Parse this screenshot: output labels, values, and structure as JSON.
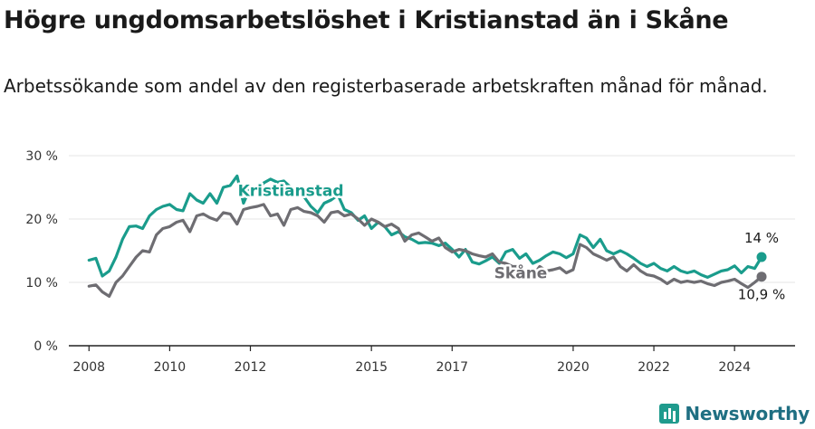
{
  "header": {
    "title": "Högre ungdomsarbetslöshet i Kristianstad än i Skåne",
    "subtitle": "Arbetssökande som andel av den registerbaserade arbetskraften månad för månad."
  },
  "brand": {
    "name": "Newsworthy",
    "icon": "newsworthy-logo-icon"
  },
  "chart_data": {
    "type": "line",
    "title": "Högre ungdomsarbetslöshet i Kristianstad än i Skåne",
    "subtitle": "Arbetssökande som andel av den registerbaserade arbetskraften månad för månad.",
    "xlabel": "",
    "ylabel": "",
    "xlim": [
      2007.5,
      2025.5
    ],
    "ylim": [
      0,
      30
    ],
    "y_ticks": [
      0,
      10,
      20,
      30
    ],
    "y_tick_labels": [
      "0 %",
      "10 %",
      "20 %",
      "30 %"
    ],
    "x_ticks": [
      2008,
      2010,
      2012,
      2015,
      2017,
      2020,
      2022,
      2024
    ],
    "x_tick_labels": [
      "2008",
      "2010",
      "2012",
      "2015",
      "2017",
      "2020",
      "2022",
      "2024"
    ],
    "grid": true,
    "series": [
      {
        "name": "Kristianstad",
        "color": "#1a9c8c",
        "end_label": "14 %",
        "x": [
          2008.0,
          2008.17,
          2008.33,
          2008.5,
          2008.67,
          2008.83,
          2009.0,
          2009.17,
          2009.33,
          2009.5,
          2009.67,
          2009.83,
          2010.0,
          2010.17,
          2010.33,
          2010.5,
          2010.67,
          2010.83,
          2011.0,
          2011.17,
          2011.33,
          2011.5,
          2011.67,
          2011.83,
          2012.0,
          2012.17,
          2012.33,
          2012.5,
          2012.67,
          2012.83,
          2013.0,
          2013.17,
          2013.33,
          2013.5,
          2013.67,
          2013.83,
          2014.0,
          2014.17,
          2014.33,
          2014.5,
          2014.67,
          2014.83,
          2015.0,
          2015.17,
          2015.33,
          2015.5,
          2015.67,
          2015.83,
          2016.0,
          2016.17,
          2016.33,
          2016.5,
          2016.67,
          2016.83,
          2017.0,
          2017.17,
          2017.33,
          2017.5,
          2017.67,
          2017.83,
          2018.0,
          2018.17,
          2018.33,
          2018.5,
          2018.67,
          2018.83,
          2019.0,
          2019.17,
          2019.33,
          2019.5,
          2019.67,
          2019.83,
          2020.0,
          2020.17,
          2020.33,
          2020.5,
          2020.67,
          2020.83,
          2021.0,
          2021.17,
          2021.33,
          2021.5,
          2021.67,
          2021.83,
          2022.0,
          2022.17,
          2022.33,
          2022.5,
          2022.67,
          2022.83,
          2023.0,
          2023.17,
          2023.33,
          2023.5,
          2023.67,
          2023.83,
          2024.0,
          2024.17,
          2024.33,
          2024.5,
          2024.67
        ],
        "values": [
          13.5,
          13.8,
          11.0,
          11.8,
          14.0,
          16.8,
          18.8,
          18.9,
          18.5,
          20.5,
          21.5,
          22.0,
          22.3,
          21.5,
          21.3,
          24.0,
          23.0,
          22.5,
          24.0,
          22.5,
          25.0,
          25.3,
          26.8,
          22.5,
          25.0,
          24.5,
          25.7,
          26.3,
          25.8,
          26.0,
          25.0,
          24.0,
          23.5,
          22.0,
          21.0,
          22.5,
          23.0,
          23.8,
          21.5,
          21.0,
          19.8,
          20.5,
          18.5,
          19.5,
          18.8,
          17.5,
          18.0,
          17.2,
          16.8,
          16.2,
          16.3,
          16.2,
          15.8,
          16.2,
          15.2,
          14.0,
          15.2,
          13.2,
          12.9,
          13.4,
          14.0,
          13.0,
          14.8,
          15.2,
          13.8,
          14.5,
          13.0,
          13.5,
          14.2,
          14.8,
          14.5,
          13.9,
          14.5,
          17.5,
          17.0,
          15.5,
          16.8,
          15.0,
          14.5,
          15.0,
          14.5,
          13.8,
          13.0,
          12.5,
          13.0,
          12.2,
          11.8,
          12.5,
          11.8,
          11.5,
          11.8,
          11.2,
          10.8,
          11.3,
          11.8,
          12.0,
          12.6,
          11.5,
          12.5,
          12.2,
          14.0
        ]
      },
      {
        "name": "Skåne",
        "color": "#6e6d72",
        "end_label": "10,9 %",
        "x": [
          2008.0,
          2008.17,
          2008.33,
          2008.5,
          2008.67,
          2008.83,
          2009.0,
          2009.17,
          2009.33,
          2009.5,
          2009.67,
          2009.83,
          2010.0,
          2010.17,
          2010.33,
          2010.5,
          2010.67,
          2010.83,
          2011.0,
          2011.17,
          2011.33,
          2011.5,
          2011.67,
          2011.83,
          2012.0,
          2012.17,
          2012.33,
          2012.5,
          2012.67,
          2012.83,
          2013.0,
          2013.17,
          2013.33,
          2013.5,
          2013.67,
          2013.83,
          2014.0,
          2014.17,
          2014.33,
          2014.5,
          2014.67,
          2014.83,
          2015.0,
          2015.17,
          2015.33,
          2015.5,
          2015.67,
          2015.83,
          2016.0,
          2016.17,
          2016.33,
          2016.5,
          2016.67,
          2016.83,
          2017.0,
          2017.17,
          2017.33,
          2017.5,
          2017.67,
          2017.83,
          2018.0,
          2018.17,
          2018.33,
          2018.5,
          2018.67,
          2018.83,
          2019.0,
          2019.17,
          2019.33,
          2019.5,
          2019.67,
          2019.83,
          2020.0,
          2020.17,
          2020.33,
          2020.5,
          2020.67,
          2020.83,
          2021.0,
          2021.17,
          2021.33,
          2021.5,
          2021.67,
          2021.83,
          2022.0,
          2022.17,
          2022.33,
          2022.5,
          2022.67,
          2022.83,
          2023.0,
          2023.17,
          2023.33,
          2023.5,
          2023.67,
          2023.83,
          2024.0,
          2024.17,
          2024.33,
          2024.5,
          2024.67
        ],
        "values": [
          9.4,
          9.6,
          8.5,
          7.8,
          10.0,
          11.0,
          12.5,
          14.0,
          15.0,
          14.8,
          17.5,
          18.5,
          18.8,
          19.5,
          19.8,
          18.0,
          20.5,
          20.8,
          20.2,
          19.8,
          21.0,
          20.8,
          19.2,
          21.5,
          21.8,
          22.0,
          22.3,
          20.5,
          20.8,
          19.0,
          21.5,
          21.8,
          21.2,
          21.0,
          20.5,
          19.5,
          21.0,
          21.2,
          20.5,
          20.8,
          20.0,
          19.0,
          20.0,
          19.5,
          18.8,
          19.2,
          18.5,
          16.5,
          17.5,
          17.8,
          17.2,
          16.5,
          17.0,
          15.5,
          14.8,
          15.2,
          15.0,
          14.5,
          14.2,
          14.0,
          14.5,
          13.2,
          13.0,
          12.5,
          12.5,
          11.5,
          11.0,
          12.5,
          11.8,
          12.0,
          12.3,
          11.5,
          12.0,
          16.0,
          15.5,
          14.5,
          14.0,
          13.5,
          14.0,
          12.5,
          11.8,
          12.8,
          11.8,
          11.2,
          11.0,
          10.5,
          9.8,
          10.5,
          10.0,
          10.2,
          10.0,
          10.2,
          9.8,
          9.5,
          10.0,
          10.2,
          10.5,
          9.8,
          9.2,
          10.0,
          10.9
        ]
      }
    ],
    "annotations": [
      {
        "text": "Kristianstad",
        "series": "Kristianstad",
        "x": 2013.0,
        "y": 24.5
      },
      {
        "text": "Skåne",
        "series": "Skåne",
        "x": 2018.7,
        "y": 11.5
      }
    ]
  }
}
